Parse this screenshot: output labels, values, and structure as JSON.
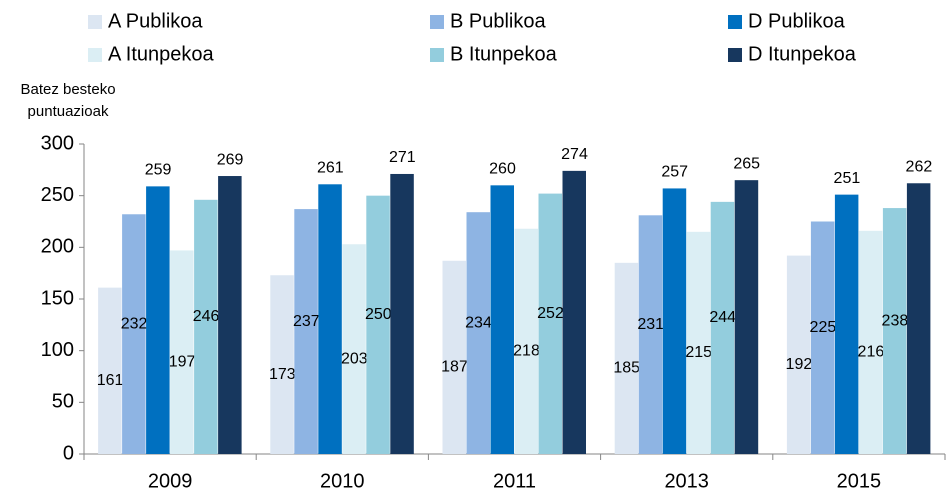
{
  "chart_data": {
    "type": "bar",
    "y_label": [
      "Batez besteko",
      "puntuazioak"
    ],
    "categories": [
      "2009",
      "2010",
      "2011",
      "2013",
      "2015"
    ],
    "series": [
      {
        "name": "A Publikoa",
        "color": "#dce6f2",
        "values": [
          161,
          173,
          187,
          185,
          192
        ]
      },
      {
        "name": "B Publikoa",
        "color": "#8eb4e3",
        "values": [
          232,
          237,
          234,
          231,
          225
        ]
      },
      {
        "name": "D Publikoa",
        "color": "#0070c0",
        "values": [
          259,
          261,
          260,
          257,
          251
        ]
      },
      {
        "name": "A Itunpekoa",
        "color": "#dbeef4",
        "values": [
          197,
          203,
          218,
          215,
          216
        ]
      },
      {
        "name": "B Itunpekoa",
        "color": "#93cddd",
        "values": [
          246,
          250,
          252,
          244,
          238
        ]
      },
      {
        "name": "D Itunpekoa",
        "color": "#17375e",
        "values": [
          269,
          271,
          274,
          265,
          262
        ]
      }
    ],
    "ylim": [
      0,
      300
    ],
    "yticks": [
      0,
      50,
      100,
      150,
      200,
      250,
      300
    ],
    "grid": false
  }
}
